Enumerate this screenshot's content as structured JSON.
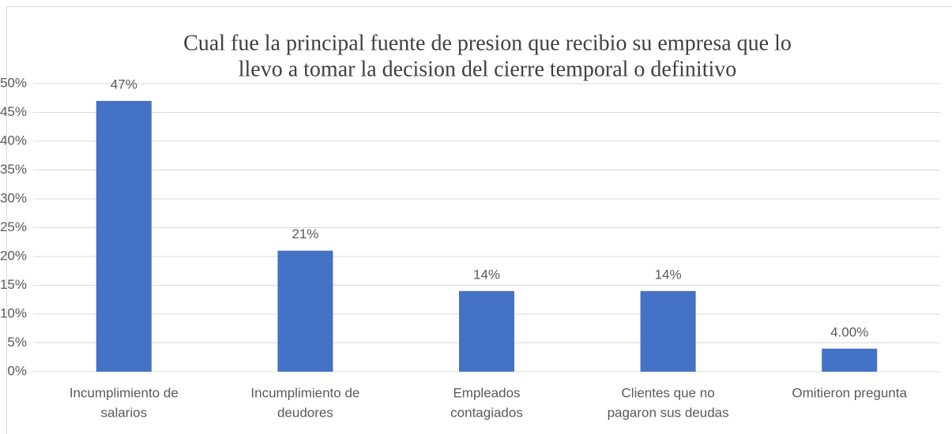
{
  "chart_data": {
    "type": "bar",
    "title": [
      "Cual fue la principal fuente de presion que recibio su empresa que lo",
      "llevo a tomar la  decision  del cierre temporal o definitivo"
    ],
    "categories": [
      [
        "Incumplimiento de",
        "salarios"
      ],
      [
        "Incumplimiento de",
        "deudores"
      ],
      [
        "Empleados",
        "contagiados"
      ],
      [
        "Clientes que no",
        "pagaron sus deudas"
      ],
      [
        "Omitieron pregunta"
      ]
    ],
    "values": [
      47,
      21,
      14,
      14,
      4
    ],
    "value_labels": [
      "47%",
      "21%",
      "14%",
      "14%",
      "4.00%"
    ],
    "color": "#4472c4",
    "ylim": [
      0,
      50
    ],
    "yticks": [
      {
        "value": 0,
        "label": "0%"
      },
      {
        "value": 5,
        "label": "5%"
      },
      {
        "value": 10,
        "label": "10%"
      },
      {
        "value": 15,
        "label": "15%"
      },
      {
        "value": 20,
        "label": "20%"
      },
      {
        "value": 25,
        "label": "25%"
      },
      {
        "value": 30,
        "label": "30%"
      },
      {
        "value": 35,
        "label": "35%"
      },
      {
        "value": 40,
        "label": "40%"
      },
      {
        "value": 45,
        "label": "45%"
      },
      {
        "value": 50,
        "label": "50%"
      }
    ],
    "grid": true
  }
}
